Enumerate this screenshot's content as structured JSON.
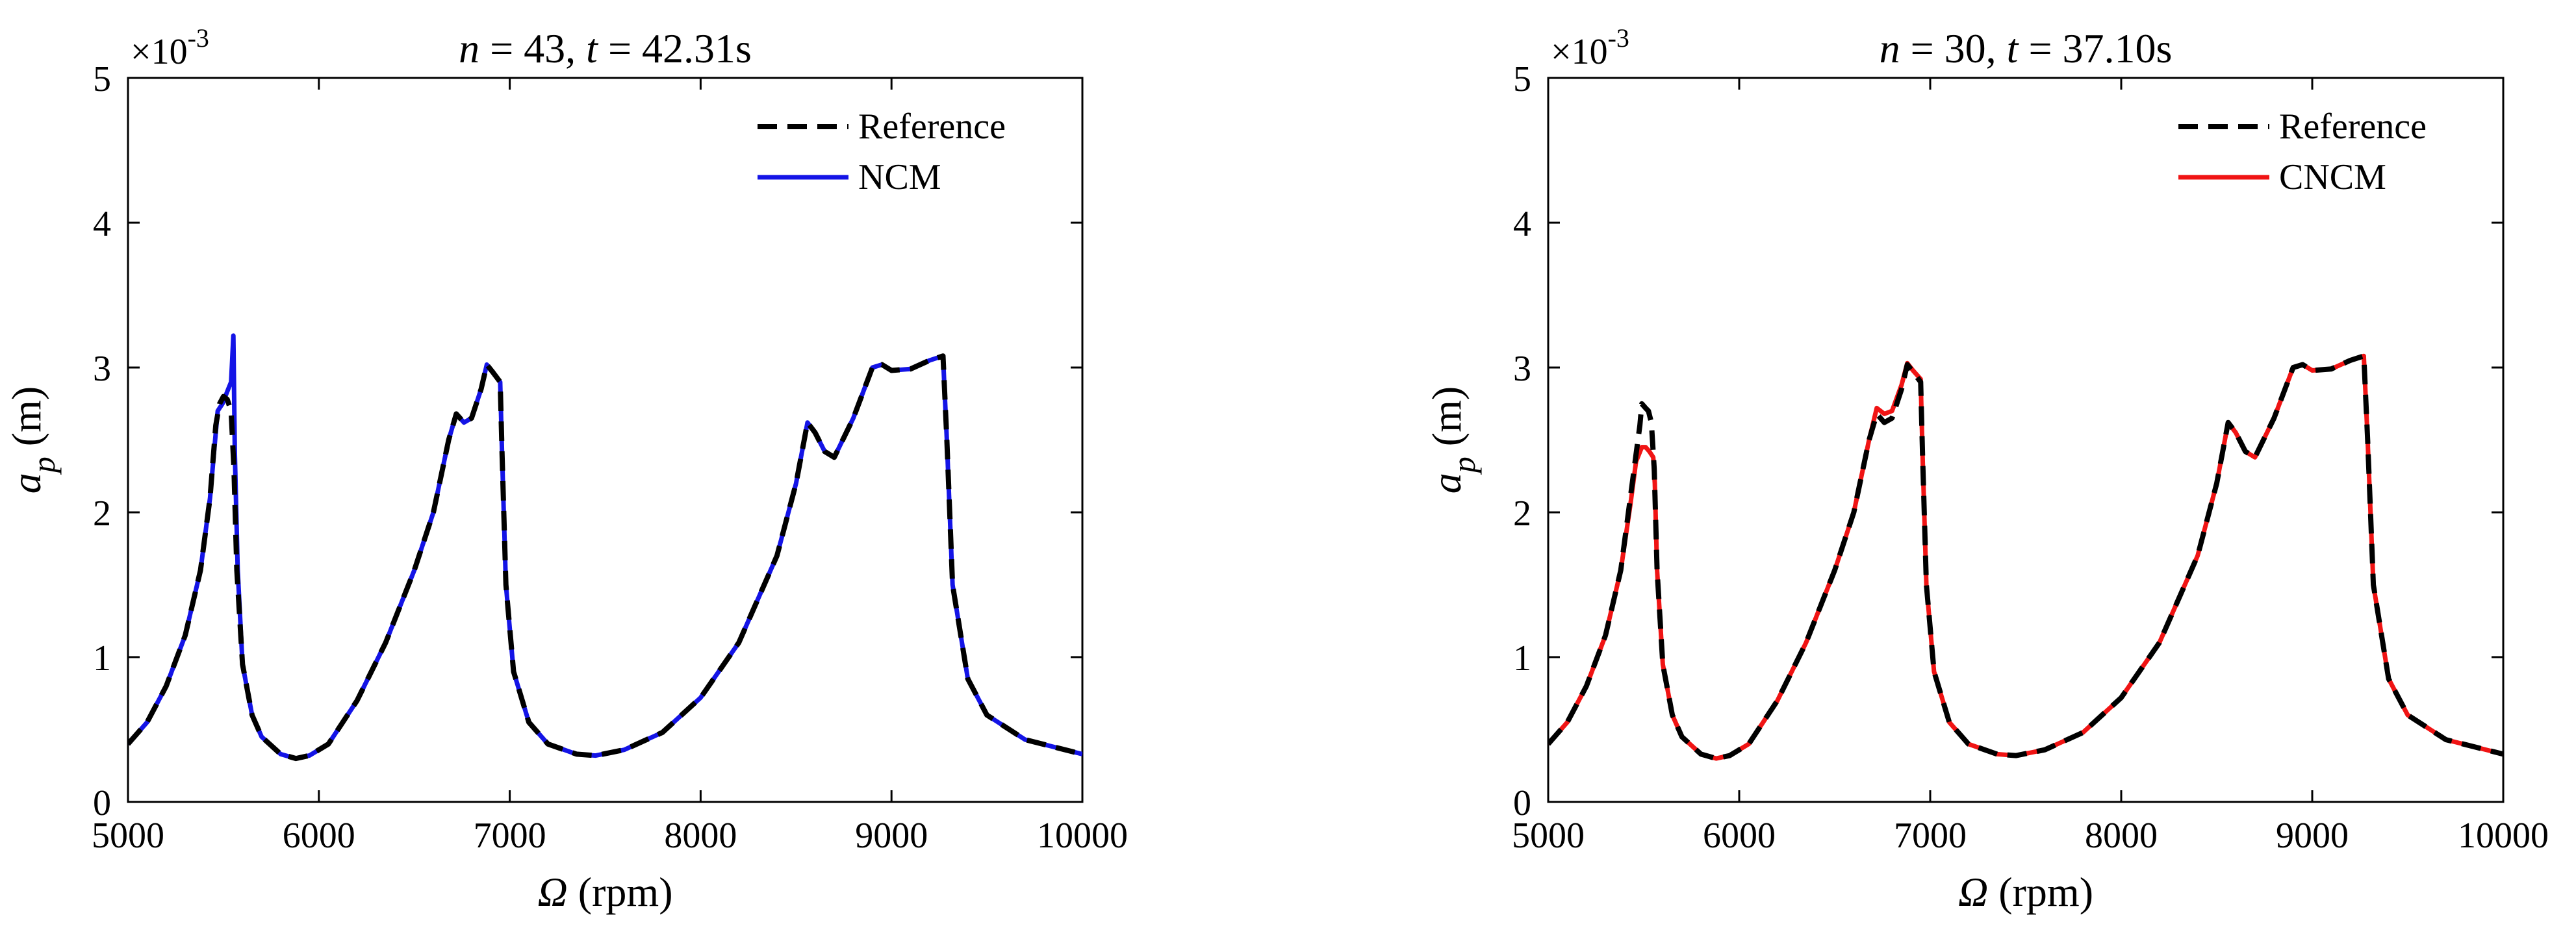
{
  "chart_data": [
    {
      "type": "line",
      "title": {
        "n_var": "n",
        "n_eq": " = 43, ",
        "t_var": "t",
        "t_eq": " = 42.31s"
      },
      "xlabel": {
        "symbol": "Ω",
        "unit": " (rpm)"
      },
      "ylabel": {
        "main": "a",
        "sub": "p",
        "unit": " (m)"
      },
      "y_exponent": {
        "base": "×10",
        "power": "-3"
      },
      "xlim": [
        5000,
        10000
      ],
      "ylim": [
        0,
        5
      ],
      "xticks": [
        5000,
        6000,
        7000,
        8000,
        9000,
        10000
      ],
      "yticks": [
        0,
        1,
        2,
        3,
        4,
        5
      ],
      "legend_position": "top-right",
      "series": [
        {
          "name": "Reference",
          "color": "#000000",
          "style": "dashed",
          "points": [
            [
              5000,
              0.4
            ],
            [
              5100,
              0.55
            ],
            [
              5200,
              0.8
            ],
            [
              5300,
              1.15
            ],
            [
              5380,
              1.6
            ],
            [
              5430,
              2.1
            ],
            [
              5460,
              2.6
            ],
            [
              5480,
              2.75
            ],
            [
              5500,
              2.8
            ],
            [
              5520,
              2.78
            ],
            [
              5540,
              2.7
            ],
            [
              5555,
              2.3
            ],
            [
              5570,
              1.6
            ],
            [
              5600,
              0.95
            ],
            [
              5650,
              0.6
            ],
            [
              5700,
              0.45
            ],
            [
              5800,
              0.33
            ],
            [
              5880,
              0.3
            ],
            [
              5950,
              0.32
            ],
            [
              6050,
              0.4
            ],
            [
              6200,
              0.7
            ],
            [
              6350,
              1.1
            ],
            [
              6500,
              1.6
            ],
            [
              6600,
              2.0
            ],
            [
              6680,
              2.5
            ],
            [
              6720,
              2.68
            ],
            [
              6760,
              2.62
            ],
            [
              6800,
              2.65
            ],
            [
              6850,
              2.85
            ],
            [
              6880,
              3.02
            ],
            [
              6910,
              2.97
            ],
            [
              6950,
              2.9
            ],
            [
              6960,
              2.4
            ],
            [
              6980,
              1.5
            ],
            [
              7020,
              0.9
            ],
            [
              7100,
              0.55
            ],
            [
              7200,
              0.4
            ],
            [
              7350,
              0.33
            ],
            [
              7450,
              0.32
            ],
            [
              7600,
              0.36
            ],
            [
              7800,
              0.48
            ],
            [
              8000,
              0.72
            ],
            [
              8200,
              1.1
            ],
            [
              8400,
              1.7
            ],
            [
              8500,
              2.2
            ],
            [
              8560,
              2.62
            ],
            [
              8600,
              2.55
            ],
            [
              8650,
              2.42
            ],
            [
              8700,
              2.38
            ],
            [
              8800,
              2.65
            ],
            [
              8900,
              3.0
            ],
            [
              8950,
              3.02
            ],
            [
              9000,
              2.98
            ],
            [
              9100,
              2.99
            ],
            [
              9200,
              3.05
            ],
            [
              9270,
              3.08
            ],
            [
              9290,
              2.5
            ],
            [
              9320,
              1.5
            ],
            [
              9400,
              0.85
            ],
            [
              9500,
              0.6
            ],
            [
              9700,
              0.43
            ],
            [
              10000,
              0.33
            ]
          ]
        },
        {
          "name": "NCM",
          "color": "#1414e6",
          "style": "solid",
          "points": [
            [
              5000,
              0.4
            ],
            [
              5100,
              0.55
            ],
            [
              5200,
              0.8
            ],
            [
              5300,
              1.15
            ],
            [
              5380,
              1.6
            ],
            [
              5430,
              2.1
            ],
            [
              5460,
              2.55
            ],
            [
              5470,
              2.7
            ],
            [
              5480,
              2.72
            ],
            [
              5495,
              2.75
            ],
            [
              5510,
              2.8
            ],
            [
              5525,
              2.85
            ],
            [
              5540,
              2.9
            ],
            [
              5552,
              3.22
            ],
            [
              5560,
              2.4
            ],
            [
              5575,
              1.6
            ],
            [
              5600,
              0.95
            ],
            [
              5650,
              0.6
            ],
            [
              5700,
              0.45
            ],
            [
              5800,
              0.33
            ],
            [
              5880,
              0.3
            ],
            [
              5950,
              0.32
            ],
            [
              6050,
              0.4
            ],
            [
              6200,
              0.7
            ],
            [
              6350,
              1.1
            ],
            [
              6500,
              1.6
            ],
            [
              6600,
              2.0
            ],
            [
              6680,
              2.5
            ],
            [
              6720,
              2.68
            ],
            [
              6760,
              2.62
            ],
            [
              6800,
              2.65
            ],
            [
              6850,
              2.85
            ],
            [
              6880,
              3.02
            ],
            [
              6910,
              2.97
            ],
            [
              6950,
              2.9
            ],
            [
              6960,
              2.4
            ],
            [
              6980,
              1.5
            ],
            [
              7020,
              0.9
            ],
            [
              7100,
              0.55
            ],
            [
              7200,
              0.4
            ],
            [
              7350,
              0.33
            ],
            [
              7450,
              0.32
            ],
            [
              7600,
              0.36
            ],
            [
              7800,
              0.48
            ],
            [
              8000,
              0.72
            ],
            [
              8200,
              1.1
            ],
            [
              8400,
              1.7
            ],
            [
              8500,
              2.2
            ],
            [
              8560,
              2.62
            ],
            [
              8600,
              2.55
            ],
            [
              8650,
              2.42
            ],
            [
              8700,
              2.38
            ],
            [
              8800,
              2.65
            ],
            [
              8900,
              3.0
            ],
            [
              8950,
              3.02
            ],
            [
              9000,
              2.98
            ],
            [
              9100,
              2.99
            ],
            [
              9200,
              3.05
            ],
            [
              9270,
              3.08
            ],
            [
              9290,
              2.5
            ],
            [
              9320,
              1.5
            ],
            [
              9400,
              0.85
            ],
            [
              9500,
              0.6
            ],
            [
              9700,
              0.43
            ],
            [
              10000,
              0.33
            ]
          ]
        }
      ]
    },
    {
      "type": "line",
      "title": {
        "n_var": "n",
        "n_eq": " = 30, ",
        "t_var": "t",
        "t_eq": " = 37.10s"
      },
      "xlabel": {
        "symbol": "Ω",
        "unit": " (rpm)"
      },
      "ylabel": {
        "main": "a",
        "sub": "p",
        "unit": " (m)"
      },
      "y_exponent": {
        "base": "×10",
        "power": "-3"
      },
      "xlim": [
        5000,
        10000
      ],
      "ylim": [
        0,
        5
      ],
      "xticks": [
        5000,
        6000,
        7000,
        8000,
        9000,
        10000
      ],
      "yticks": [
        0,
        1,
        2,
        3,
        4,
        5
      ],
      "legend_position": "top-right",
      "series": [
        {
          "name": "Reference",
          "color": "#000000",
          "style": "dashed",
          "points": [
            [
              5000,
              0.4
            ],
            [
              5100,
              0.55
            ],
            [
              5200,
              0.8
            ],
            [
              5300,
              1.15
            ],
            [
              5380,
              1.6
            ],
            [
              5430,
              2.1
            ],
            [
              5460,
              2.4
            ],
            [
              5480,
              2.6
            ],
            [
              5490,
              2.75
            ],
            [
              5510,
              2.72
            ],
            [
              5525,
              2.7
            ],
            [
              5540,
              2.62
            ],
            [
              5555,
              2.3
            ],
            [
              5570,
              1.6
            ],
            [
              5600,
              0.95
            ],
            [
              5650,
              0.6
            ],
            [
              5700,
              0.45
            ],
            [
              5800,
              0.33
            ],
            [
              5880,
              0.3
            ],
            [
              5950,
              0.32
            ],
            [
              6050,
              0.4
            ],
            [
              6200,
              0.7
            ],
            [
              6350,
              1.1
            ],
            [
              6500,
              1.6
            ],
            [
              6600,
              2.0
            ],
            [
              6680,
              2.5
            ],
            [
              6720,
              2.68
            ],
            [
              6760,
              2.62
            ],
            [
              6800,
              2.65
            ],
            [
              6850,
              2.85
            ],
            [
              6880,
              3.02
            ],
            [
              6910,
              2.97
            ],
            [
              6950,
              2.9
            ],
            [
              6960,
              2.4
            ],
            [
              6980,
              1.5
            ],
            [
              7020,
              0.9
            ],
            [
              7100,
              0.55
            ],
            [
              7200,
              0.4
            ],
            [
              7350,
              0.33
            ],
            [
              7450,
              0.32
            ],
            [
              7600,
              0.36
            ],
            [
              7800,
              0.48
            ],
            [
              8000,
              0.72
            ],
            [
              8200,
              1.1
            ],
            [
              8400,
              1.7
            ],
            [
              8500,
              2.2
            ],
            [
              8560,
              2.62
            ],
            [
              8600,
              2.55
            ],
            [
              8650,
              2.42
            ],
            [
              8700,
              2.38
            ],
            [
              8800,
              2.65
            ],
            [
              8900,
              3.0
            ],
            [
              8950,
              3.02
            ],
            [
              9000,
              2.98
            ],
            [
              9100,
              2.99
            ],
            [
              9200,
              3.05
            ],
            [
              9270,
              3.08
            ],
            [
              9290,
              2.5
            ],
            [
              9320,
              1.5
            ],
            [
              9400,
              0.85
            ],
            [
              9500,
              0.6
            ],
            [
              9700,
              0.43
            ],
            [
              10000,
              0.33
            ]
          ]
        },
        {
          "name": "CNCM",
          "color": "#f01414",
          "style": "solid",
          "points": [
            [
              5000,
              0.4
            ],
            [
              5100,
              0.55
            ],
            [
              5200,
              0.8
            ],
            [
              5300,
              1.15
            ],
            [
              5380,
              1.6
            ],
            [
              5430,
              2.05
            ],
            [
              5460,
              2.35
            ],
            [
              5490,
              2.45
            ],
            [
              5510,
              2.45
            ],
            [
              5530,
              2.42
            ],
            [
              5550,
              2.38
            ],
            [
              5558,
              2.2
            ],
            [
              5570,
              1.6
            ],
            [
              5600,
              0.95
            ],
            [
              5650,
              0.6
            ],
            [
              5700,
              0.45
            ],
            [
              5800,
              0.33
            ],
            [
              5880,
              0.3
            ],
            [
              5950,
              0.32
            ],
            [
              6050,
              0.4
            ],
            [
              6200,
              0.7
            ],
            [
              6350,
              1.1
            ],
            [
              6500,
              1.6
            ],
            [
              6600,
              2.0
            ],
            [
              6680,
              2.5
            ],
            [
              6720,
              2.72
            ],
            [
              6760,
              2.68
            ],
            [
              6800,
              2.7
            ],
            [
              6850,
              2.88
            ],
            [
              6880,
              3.03
            ],
            [
              6910,
              2.98
            ],
            [
              6950,
              2.92
            ],
            [
              6960,
              2.4
            ],
            [
              6980,
              1.5
            ],
            [
              7020,
              0.9
            ],
            [
              7100,
              0.55
            ],
            [
              7200,
              0.4
            ],
            [
              7350,
              0.33
            ],
            [
              7450,
              0.32
            ],
            [
              7600,
              0.36
            ],
            [
              7800,
              0.48
            ],
            [
              8000,
              0.72
            ],
            [
              8200,
              1.1
            ],
            [
              8400,
              1.7
            ],
            [
              8500,
              2.2
            ],
            [
              8560,
              2.62
            ],
            [
              8600,
              2.55
            ],
            [
              8650,
              2.42
            ],
            [
              8700,
              2.38
            ],
            [
              8800,
              2.65
            ],
            [
              8900,
              3.0
            ],
            [
              8950,
              3.02
            ],
            [
              9000,
              2.98
            ],
            [
              9100,
              2.99
            ],
            [
              9200,
              3.05
            ],
            [
              9270,
              3.08
            ],
            [
              9290,
              2.5
            ],
            [
              9320,
              1.5
            ],
            [
              9400,
              0.85
            ],
            [
              9500,
              0.6
            ],
            [
              9700,
              0.43
            ],
            [
              10000,
              0.33
            ]
          ]
        }
      ]
    }
  ]
}
